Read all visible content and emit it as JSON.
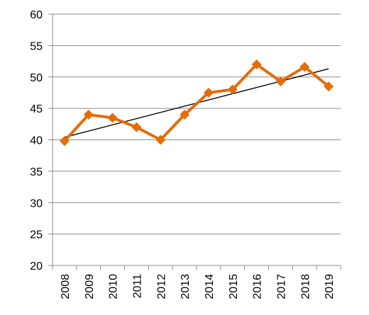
{
  "chart_data": {
    "type": "line",
    "title": "",
    "xlabel": "",
    "ylabel": "",
    "categories": [
      "2008",
      "2009",
      "2010",
      "2011",
      "2012",
      "2013",
      "2014",
      "2015",
      "2016",
      "2017",
      "2018",
      "2019"
    ],
    "series": [
      {
        "values": [
          39.8,
          44.0,
          43.5,
          42.0,
          40.0,
          44.0,
          47.5,
          48.0,
          52.0,
          49.3,
          51.6,
          48.5
        ],
        "marker": "diamond"
      }
    ],
    "trendline": {
      "type": "linear",
      "start_value": 40.4,
      "end_value": 51.3
    },
    "ylim": [
      20,
      60
    ],
    "yticks": [
      "20",
      "25",
      "30",
      "35",
      "40",
      "45",
      "50",
      "55",
      "60"
    ],
    "grid": true,
    "legend": "none",
    "colors": {
      "series": "#e46c0a",
      "trendline": "#000000",
      "grid": "#8c8c8c"
    }
  }
}
